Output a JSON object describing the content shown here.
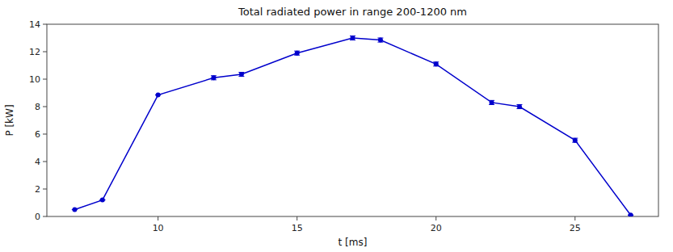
{
  "chart_data": {
    "type": "line",
    "title": "Total radiated power in range 200-1200 nm",
    "xlabel": "t [ms]",
    "ylabel": "P [kW]",
    "x": [
      7,
      8,
      10,
      12,
      13,
      15,
      17,
      18,
      20,
      22,
      23,
      25,
      27
    ],
    "values": [
      0.5,
      1.2,
      8.85,
      10.1,
      10.35,
      11.9,
      13.0,
      12.85,
      11.1,
      8.3,
      8.0,
      5.55,
      0.1
    ],
    "yerr": [
      0.0,
      0.0,
      0.0,
      0.15,
      0.15,
      0.15,
      0.15,
      0.15,
      0.15,
      0.15,
      0.15,
      0.15,
      0.0
    ],
    "color": "#0000cc",
    "marker": "circle",
    "line_style": "solid",
    "xlim": [
      6.0,
      28.0
    ],
    "ylim": [
      0,
      14
    ],
    "xticks": [
      10,
      15,
      20,
      25
    ],
    "yticks": [
      0,
      2,
      4,
      6,
      8,
      10,
      12,
      14
    ],
    "grid": false
  }
}
